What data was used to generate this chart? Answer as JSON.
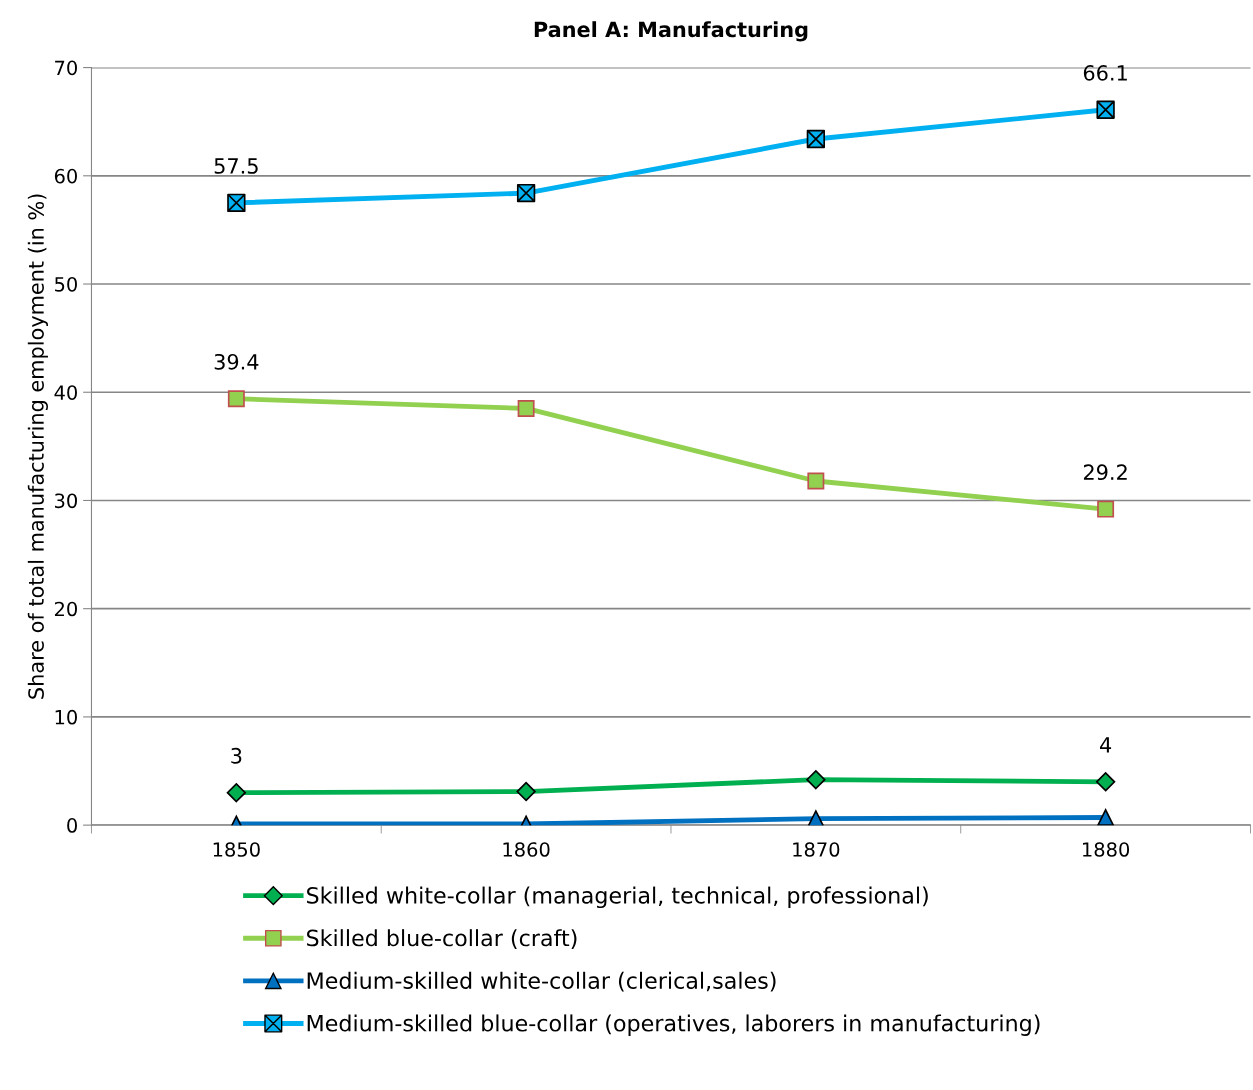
{
  "chart_data": {
    "type": "line",
    "title": "Panel A: Manufacturing",
    "ylabel": "Share of total manufacturing employment (in %)",
    "categories": [
      "1850",
      "1860",
      "1870",
      "1880"
    ],
    "series": [
      {
        "name": "Skilled white-collar (managerial, technical, professional)",
        "color": "#00b050",
        "marker": "diamond",
        "values": [
          3,
          3.1,
          4.2,
          4
        ],
        "value_labels": [
          "3",
          null,
          null,
          "4"
        ]
      },
      {
        "name": "Skilled blue-collar (craft)",
        "color": "#92d050",
        "marker": "square",
        "values": [
          39.4,
          38.5,
          31.8,
          29.2
        ],
        "value_labels": [
          "39.4",
          null,
          null,
          "29.2"
        ]
      },
      {
        "name": "Medium-skilled white-collar (clerical,sales)",
        "color": "#0070c0",
        "marker": "triangle",
        "values": [
          0.1,
          0.1,
          0.6,
          0.7
        ]
      },
      {
        "name": "Medium-skilled blue-collar (operatives, laborers in manufacturing)",
        "color": "#00b0f0",
        "marker": "cross",
        "values": [
          57.5,
          58.4,
          63.4,
          66.1
        ],
        "value_labels": [
          "57.5",
          null,
          null,
          "66.1"
        ]
      }
    ],
    "ylim": [
      0,
      70
    ],
    "yticks": [
      0,
      10,
      20,
      30,
      40,
      50,
      60,
      70
    ],
    "grid": "y",
    "legend": "bottom"
  }
}
